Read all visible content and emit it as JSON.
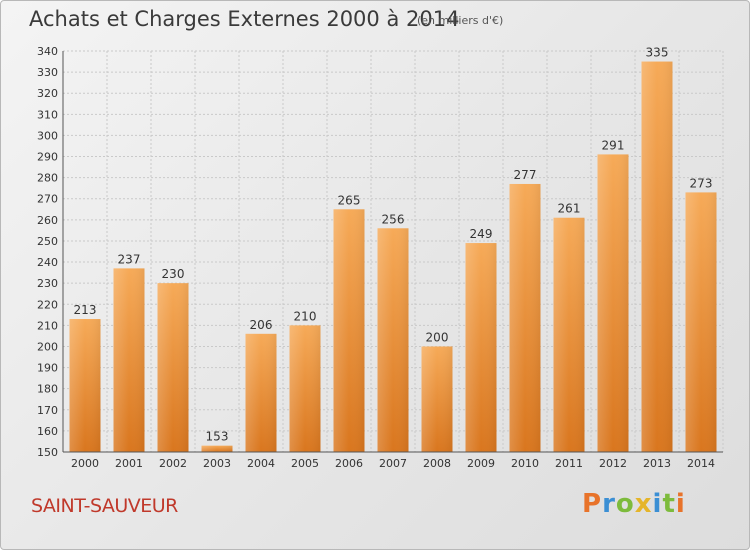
{
  "header": {
    "title": "Achats et Charges Externes 2000 à 2014",
    "subtitle": "(en milliers d'€)"
  },
  "footer": {
    "commune": "SAINT-SAUVEUR",
    "logo_text": "Proxiti",
    "logo_colors": [
      "#e8732a",
      "#3b8fd4",
      "#7dbb3c",
      "#e5b52a",
      "#3b8fd4",
      "#7dbb3c",
      "#e8732a"
    ]
  },
  "colors": {
    "bar_light": "#f6aa58",
    "bar_dark": "#d9761e",
    "commune": "#c0392b"
  },
  "chart_data": {
    "type": "bar",
    "title": "Achats et Charges Externes 2000 à 2014",
    "categories": [
      "2000",
      "2001",
      "2002",
      "2003",
      "2004",
      "2005",
      "2006",
      "2007",
      "2008",
      "2009",
      "2010",
      "2011",
      "2012",
      "2013",
      "2014"
    ],
    "values": [
      213,
      237,
      230,
      153,
      206,
      210,
      265,
      256,
      200,
      249,
      277,
      261,
      291,
      335,
      273
    ],
    "ylim": [
      150,
      340
    ],
    "yticks": [
      150,
      160,
      170,
      180,
      190,
      200,
      210,
      220,
      230,
      240,
      250,
      260,
      270,
      280,
      290,
      300,
      310,
      320,
      330,
      340
    ],
    "grid": true,
    "xlabel": "",
    "ylabel": ""
  }
}
